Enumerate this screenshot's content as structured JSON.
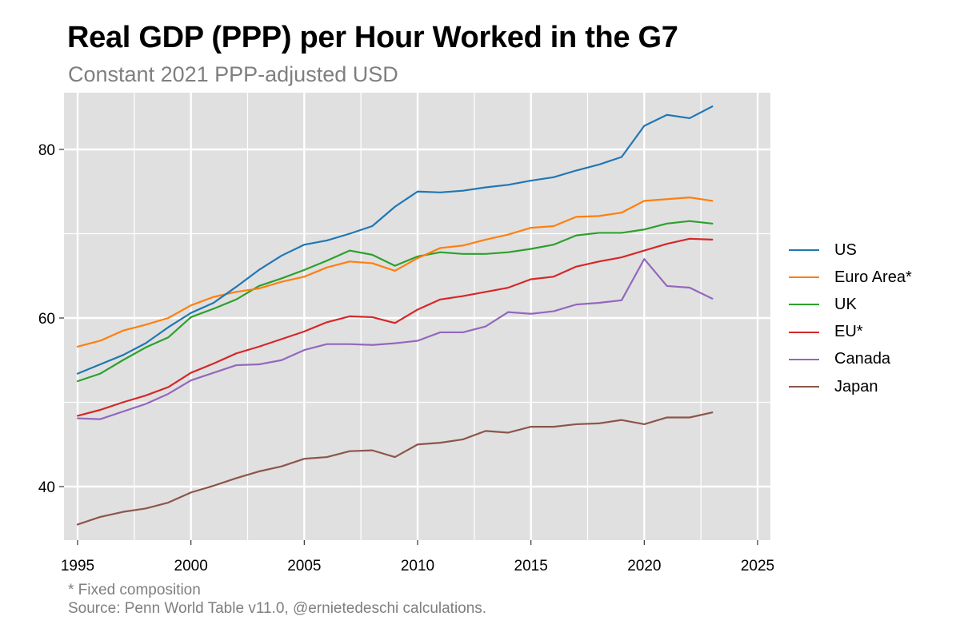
{
  "chart_data": {
    "type": "line",
    "title": "Real GDP (PPP) per Hour Worked in the G7",
    "subtitle": "Constant 2021 PPP-adjusted USD",
    "xlabel": "",
    "ylabel": "",
    "xlim": [
      1995,
      2025
    ],
    "ylim": [
      34,
      91
    ],
    "x_ticks": [
      1995,
      2000,
      2005,
      2010,
      2015,
      2020,
      2025
    ],
    "y_ticks": [
      40,
      60,
      80
    ],
    "grid": true,
    "background": "#e0e0e0",
    "legend_position": "right",
    "x": [
      1995,
      1996,
      1997,
      1998,
      1999,
      2000,
      2001,
      2002,
      2003,
      2004,
      2005,
      2006,
      2007,
      2008,
      2009,
      2010,
      2011,
      2012,
      2013,
      2014,
      2015,
      2016,
      2017,
      2018,
      2019,
      2020,
      2021,
      2022,
      2023
    ],
    "series": [
      {
        "name": "US",
        "color": "#1f77b4",
        "values": [
          53.4,
          54.5,
          55.6,
          57.0,
          58.9,
          60.6,
          61.8,
          63.7,
          65.7,
          67.4,
          68.7,
          69.2,
          70.0,
          70.9,
          73.2,
          75.0,
          74.9,
          75.1,
          75.5,
          75.8,
          76.3,
          76.7,
          77.5,
          78.2,
          79.1,
          82.8,
          84.1,
          83.7,
          85.1
        ]
      },
      {
        "name": "Euro Area*",
        "color": "#ff7f0e",
        "values": [
          56.6,
          57.3,
          58.5,
          59.2,
          60.0,
          61.5,
          62.5,
          63.1,
          63.5,
          64.3,
          64.9,
          66.0,
          66.7,
          66.5,
          65.6,
          67.1,
          68.3,
          68.6,
          69.3,
          69.9,
          70.7,
          70.9,
          72.0,
          72.1,
          72.5,
          73.9,
          74.1,
          74.3,
          73.9
        ]
      },
      {
        "name": "UK",
        "color": "#2ca02c",
        "values": [
          52.5,
          53.4,
          55.0,
          56.5,
          57.7,
          60.1,
          61.1,
          62.2,
          63.8,
          64.7,
          65.7,
          66.8,
          68.0,
          67.5,
          66.2,
          67.3,
          67.8,
          67.6,
          67.6,
          67.8,
          68.2,
          68.7,
          69.8,
          70.1,
          70.1,
          70.5,
          71.2,
          71.5,
          71.2
        ]
      },
      {
        "name": "EU*",
        "color": "#d62728",
        "values": [
          48.4,
          49.1,
          50.0,
          50.8,
          51.8,
          53.5,
          54.6,
          55.8,
          56.6,
          57.5,
          58.4,
          59.5,
          60.2,
          60.1,
          59.4,
          61.0,
          62.2,
          62.6,
          63.1,
          63.6,
          64.6,
          64.9,
          66.1,
          66.7,
          67.2,
          68.0,
          68.8,
          69.4,
          69.3
        ]
      },
      {
        "name": "Canada",
        "color": "#9467bd",
        "values": [
          48.1,
          48.0,
          48.9,
          49.8,
          51.0,
          52.6,
          53.5,
          54.4,
          54.5,
          55.0,
          56.2,
          56.9,
          56.9,
          56.8,
          57.0,
          57.3,
          58.3,
          58.3,
          59.0,
          60.7,
          60.5,
          60.8,
          61.6,
          61.8,
          62.1,
          67.0,
          63.8,
          63.6,
          62.3
        ]
      },
      {
        "name": "Japan",
        "color": "#8c564b",
        "values": [
          35.5,
          36.4,
          37.0,
          37.4,
          38.1,
          39.3,
          40.1,
          41.0,
          41.8,
          42.4,
          43.3,
          43.5,
          44.2,
          44.3,
          43.5,
          45.0,
          45.2,
          45.6,
          46.6,
          46.4,
          47.1,
          47.1,
          47.4,
          47.5,
          47.9,
          47.4,
          48.2,
          48.2,
          48.8
        ]
      }
    ]
  },
  "footnote": {
    "line1": "* Fixed composition",
    "line2": "Source: Penn World Table v11.0, @ernietedeschi calculations."
  }
}
